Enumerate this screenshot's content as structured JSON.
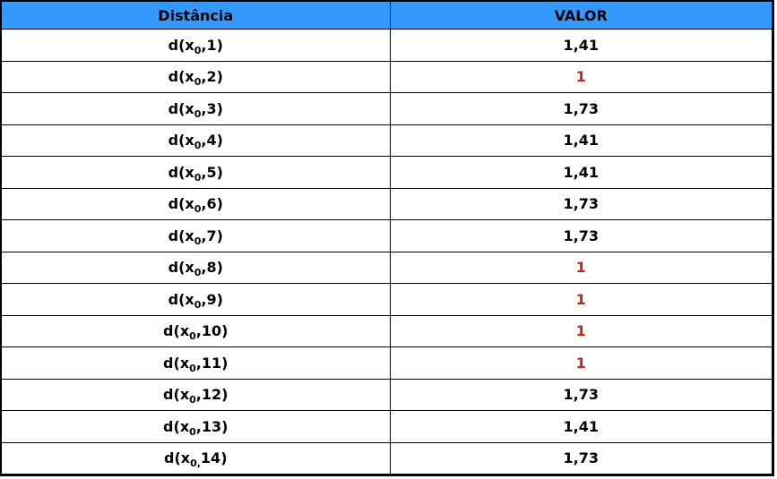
{
  "table": {
    "headers": [
      "Distância",
      "VALOR"
    ],
    "highlight_color": "#cc2211",
    "header_bg": "#3399ff",
    "rows": [
      {
        "prefix": "d(x",
        "sub": "0",
        "suffix": ",1)",
        "value": "1,41",
        "highlight": false
      },
      {
        "prefix": "d(x",
        "sub": "0",
        "suffix": ",2)",
        "value": "1",
        "highlight": true
      },
      {
        "prefix": "d(x",
        "sub": "0",
        "suffix": ",3)",
        "value": "1,73",
        "highlight": false
      },
      {
        "prefix": "d(x",
        "sub": "0",
        "suffix": ",4)",
        "value": "1,41",
        "highlight": false
      },
      {
        "prefix": "d(x",
        "sub": "0",
        "suffix": ",5)",
        "value": "1,41",
        "highlight": false
      },
      {
        "prefix": "d(x",
        "sub": "0",
        "suffix": ",6)",
        "value": "1,73",
        "highlight": false
      },
      {
        "prefix": "d(x",
        "sub": "0",
        "suffix": ",7)",
        "value": "1,73",
        "highlight": false
      },
      {
        "prefix": "d(x",
        "sub": "0",
        "suffix": ",8)",
        "value": "1",
        "highlight": true
      },
      {
        "prefix": "d(x",
        "sub": "0",
        "suffix": ",9)",
        "value": "1",
        "highlight": true
      },
      {
        "prefix": "d(x",
        "sub": "0",
        "suffix": ",10)",
        "value": "1",
        "highlight": true
      },
      {
        "prefix": "d(x",
        "sub": "0",
        "suffix": ",11)",
        "value": "1",
        "highlight": true
      },
      {
        "prefix": "d(x",
        "sub": "0",
        "suffix": ",12)",
        "value": "1,73",
        "highlight": false
      },
      {
        "prefix": "d(x",
        "sub": "0",
        "suffix": ",13)",
        "value": "1,41",
        "highlight": false
      },
      {
        "prefix": "d(x",
        "sub": "0,",
        "suffix": "14)",
        "value": "1,73",
        "highlight": false
      }
    ]
  }
}
